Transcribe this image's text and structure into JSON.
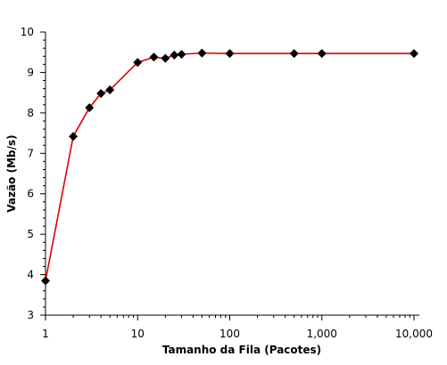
{
  "chart_data": {
    "type": "line",
    "title": "",
    "xlabel": "Tamanho da Fila (Pacotes)",
    "ylabel": "Vazão (Mb/s)",
    "xscale": "log",
    "xlim": [
      1,
      10000
    ],
    "ylim": [
      3,
      10
    ],
    "grid": false,
    "x_ticks": [
      {
        "value": 1,
        "label": "1"
      },
      {
        "value": 10,
        "label": "10"
      },
      {
        "value": 100,
        "label": "100"
      },
      {
        "value": 1000,
        "label": "1,000"
      },
      {
        "value": 10000,
        "label": "10,000"
      }
    ],
    "y_ticks": [
      3,
      4,
      5,
      6,
      7,
      8,
      9,
      10
    ],
    "series": [
      {
        "line_color": "#e00000",
        "marker": "diamond",
        "marker_color": "#000000",
        "x": [
          1,
          2,
          3,
          4,
          5,
          10,
          15,
          20,
          25,
          30,
          50,
          100,
          500,
          1000,
          10000
        ],
        "y": [
          3.85,
          7.42,
          8.13,
          8.48,
          8.57,
          9.25,
          9.38,
          9.35,
          9.43,
          9.45,
          9.48,
          9.47,
          9.47,
          9.47,
          9.47
        ]
      }
    ]
  }
}
